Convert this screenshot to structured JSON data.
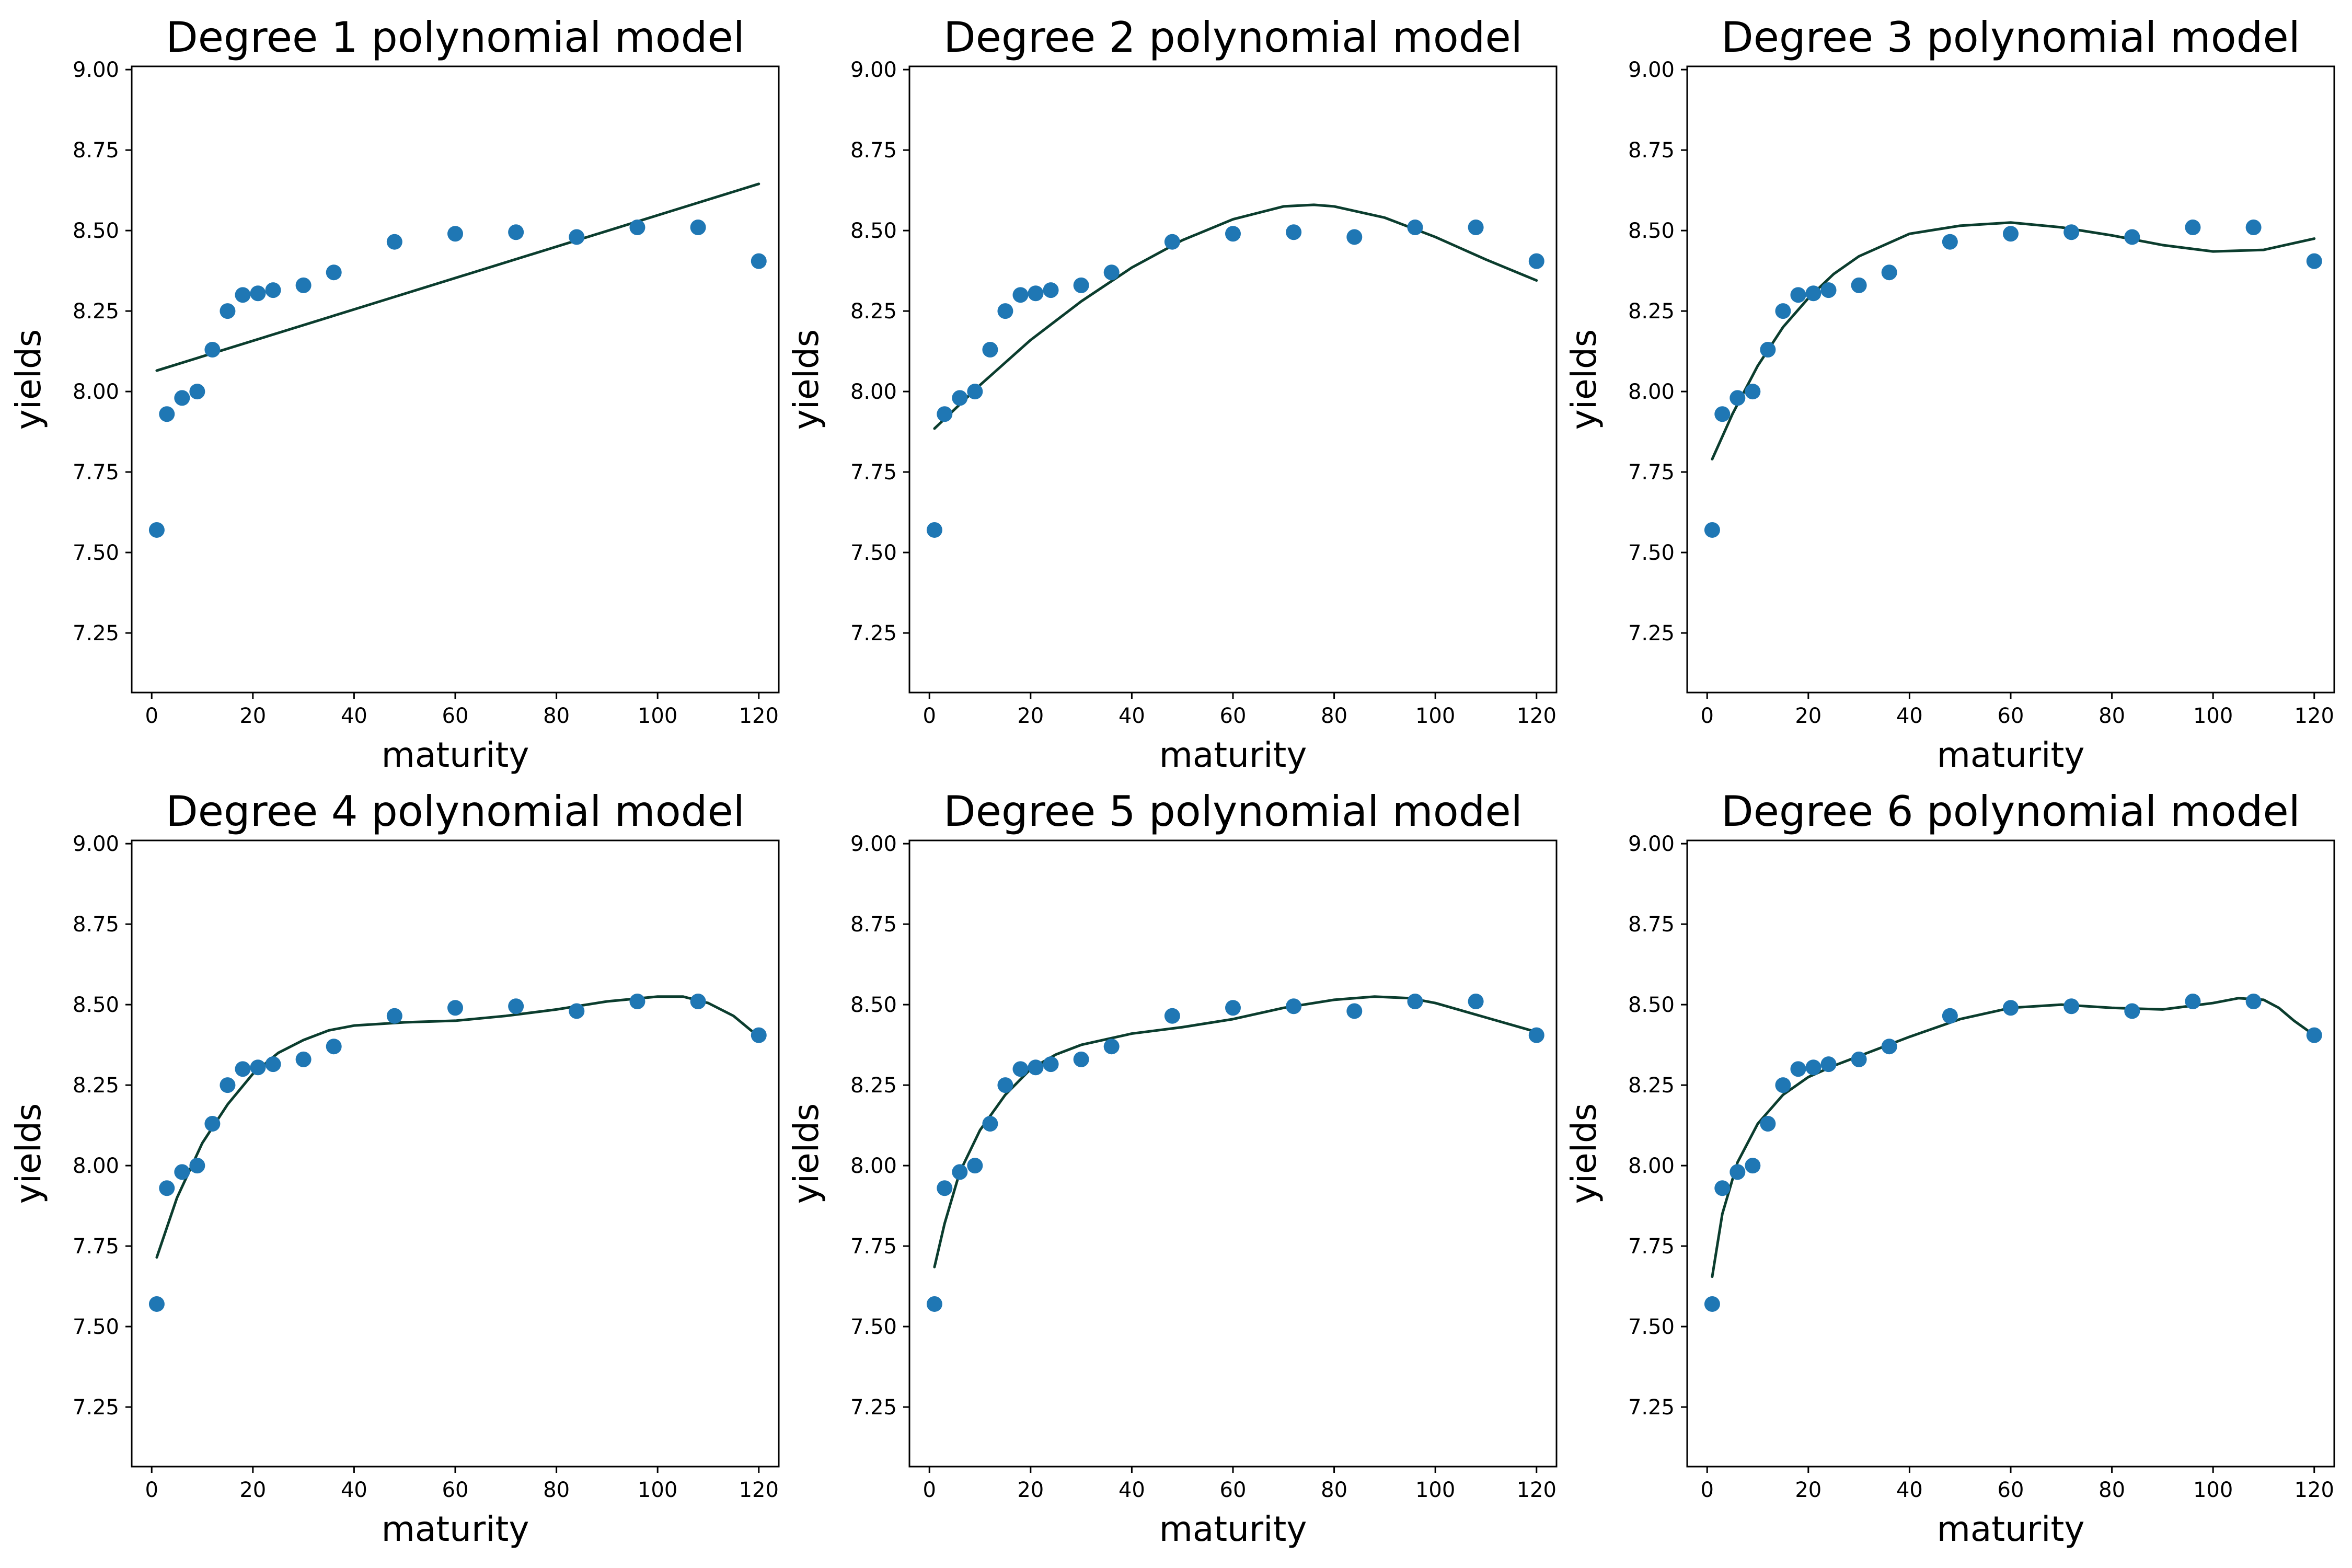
{
  "colors": {
    "points": "#1f77b4",
    "fit_line": "#0b3d2e",
    "axes": "#000000",
    "background": "#ffffff"
  },
  "layout": {
    "rows": 2,
    "cols": 3
  },
  "chart_data": [
    {
      "type": "scatter",
      "title": "Degree 1 polynomial model",
      "xlabel": "maturity",
      "ylabel": "yields",
      "xlim": [
        -3.95,
        123.95
      ],
      "ylim": [
        7.065,
        9.01
      ],
      "xticks": [
        0,
        20,
        40,
        60,
        80,
        100,
        120
      ],
      "yticks": [
        7.25,
        7.5,
        7.75,
        8.0,
        8.25,
        8.5,
        8.75,
        9.0
      ],
      "ytick_labels": [
        "7.25",
        "7.50",
        "7.75",
        "8.00",
        "8.25",
        "8.50",
        "8.75",
        "9.00"
      ],
      "grid": false,
      "series": [
        {
          "type": "scatter",
          "x": [
            1,
            3,
            6,
            9,
            12,
            15,
            18,
            21,
            24,
            30,
            36,
            48,
            60,
            72,
            84,
            96,
            108,
            120
          ],
          "y": [
            7.57,
            7.93,
            7.98,
            8.0,
            8.13,
            8.25,
            8.3,
            8.305,
            8.315,
            8.33,
            8.37,
            8.465,
            8.49,
            8.495,
            8.48,
            8.51,
            8.51,
            8.405
          ]
        },
        {
          "type": "line",
          "x": [
            1,
            120
          ],
          "y": [
            8.065,
            8.645
          ]
        }
      ]
    },
    {
      "type": "scatter",
      "title": "Degree 2 polynomial model",
      "xlabel": "maturity",
      "ylabel": "yields",
      "xlim": [
        -3.95,
        123.95
      ],
      "ylim": [
        7.065,
        9.01
      ],
      "xticks": [
        0,
        20,
        40,
        60,
        80,
        100,
        120
      ],
      "yticks": [
        7.25,
        7.5,
        7.75,
        8.0,
        8.25,
        8.5,
        8.75,
        9.0
      ],
      "ytick_labels": [
        "7.25",
        "7.50",
        "7.75",
        "8.00",
        "8.25",
        "8.50",
        "8.75",
        "9.00"
      ],
      "grid": false,
      "series": [
        {
          "type": "scatter",
          "x": [
            1,
            3,
            6,
            9,
            12,
            15,
            18,
            21,
            24,
            30,
            36,
            48,
            60,
            72,
            84,
            96,
            108,
            120
          ],
          "y": [
            7.57,
            7.93,
            7.98,
            8.0,
            8.13,
            8.25,
            8.3,
            8.305,
            8.315,
            8.33,
            8.37,
            8.465,
            8.49,
            8.495,
            8.48,
            8.51,
            8.51,
            8.405
          ]
        },
        {
          "type": "line",
          "x": [
            1,
            10,
            20,
            30,
            40,
            50,
            60,
            70,
            76,
            80,
            90,
            100,
            110,
            120
          ],
          "y": [
            7.885,
            8.02,
            8.16,
            8.28,
            8.385,
            8.47,
            8.535,
            8.575,
            8.58,
            8.575,
            8.54,
            8.48,
            8.41,
            8.345
          ]
        }
      ]
    },
    {
      "type": "scatter",
      "title": "Degree 3 polynomial model",
      "xlabel": "maturity",
      "ylabel": "yields",
      "xlim": [
        -3.95,
        123.95
      ],
      "ylim": [
        7.065,
        9.01
      ],
      "xticks": [
        0,
        20,
        40,
        60,
        80,
        100,
        120
      ],
      "yticks": [
        7.25,
        7.5,
        7.75,
        8.0,
        8.25,
        8.5,
        8.75,
        9.0
      ],
      "ytick_labels": [
        "7.25",
        "7.50",
        "7.75",
        "8.00",
        "8.25",
        "8.50",
        "8.75",
        "9.00"
      ],
      "grid": false,
      "series": [
        {
          "type": "scatter",
          "x": [
            1,
            3,
            6,
            9,
            12,
            15,
            18,
            21,
            24,
            30,
            36,
            48,
            60,
            72,
            84,
            96,
            108,
            120
          ],
          "y": [
            7.57,
            7.93,
            7.98,
            8.0,
            8.13,
            8.25,
            8.3,
            8.305,
            8.315,
            8.33,
            8.37,
            8.465,
            8.49,
            8.495,
            8.48,
            8.51,
            8.51,
            8.405
          ]
        },
        {
          "type": "line",
          "x": [
            1,
            5,
            10,
            15,
            20,
            25,
            30,
            40,
            50,
            60,
            70,
            80,
            90,
            100,
            110,
            120
          ],
          "y": [
            7.79,
            7.93,
            8.08,
            8.2,
            8.29,
            8.365,
            8.42,
            8.49,
            8.515,
            8.525,
            8.51,
            8.485,
            8.455,
            8.435,
            8.44,
            8.475
          ]
        }
      ]
    },
    {
      "type": "scatter",
      "title": "Degree 4 polynomial model",
      "xlabel": "maturity",
      "ylabel": "yields",
      "xlim": [
        -3.95,
        123.95
      ],
      "ylim": [
        7.065,
        9.01
      ],
      "xticks": [
        0,
        20,
        40,
        60,
        80,
        100,
        120
      ],
      "yticks": [
        7.25,
        7.5,
        7.75,
        8.0,
        8.25,
        8.5,
        8.75,
        9.0
      ],
      "ytick_labels": [
        "7.25",
        "7.50",
        "7.75",
        "8.00",
        "8.25",
        "8.50",
        "8.75",
        "9.00"
      ],
      "grid": false,
      "series": [
        {
          "type": "scatter",
          "x": [
            1,
            3,
            6,
            9,
            12,
            15,
            18,
            21,
            24,
            30,
            36,
            48,
            60,
            72,
            84,
            96,
            108,
            120
          ],
          "y": [
            7.57,
            7.93,
            7.98,
            8.0,
            8.13,
            8.25,
            8.3,
            8.305,
            8.315,
            8.33,
            8.37,
            8.465,
            8.49,
            8.495,
            8.48,
            8.51,
            8.51,
            8.405
          ]
        },
        {
          "type": "line",
          "x": [
            1,
            5,
            10,
            15,
            20,
            25,
            30,
            35,
            40,
            50,
            60,
            70,
            80,
            90,
            100,
            105,
            110,
            115,
            120
          ],
          "y": [
            7.715,
            7.9,
            8.07,
            8.19,
            8.285,
            8.35,
            8.39,
            8.42,
            8.435,
            8.445,
            8.45,
            8.465,
            8.485,
            8.51,
            8.525,
            8.525,
            8.505,
            8.465,
            8.4
          ]
        }
      ]
    },
    {
      "type": "scatter",
      "title": "Degree 5 polynomial model",
      "xlabel": "maturity",
      "ylabel": "yields",
      "xlim": [
        -3.95,
        123.95
      ],
      "ylim": [
        7.065,
        9.01
      ],
      "xticks": [
        0,
        20,
        40,
        60,
        80,
        100,
        120
      ],
      "yticks": [
        7.25,
        7.5,
        7.75,
        8.0,
        8.25,
        8.5,
        8.75,
        9.0
      ],
      "ytick_labels": [
        "7.25",
        "7.50",
        "7.75",
        "8.00",
        "8.25",
        "8.50",
        "8.75",
        "9.00"
      ],
      "grid": false,
      "series": [
        {
          "type": "scatter",
          "x": [
            1,
            3,
            6,
            9,
            12,
            15,
            18,
            21,
            24,
            30,
            36,
            48,
            60,
            72,
            84,
            96,
            108,
            120
          ],
          "y": [
            7.57,
            7.93,
            7.98,
            8.0,
            8.13,
            8.25,
            8.3,
            8.305,
            8.315,
            8.33,
            8.37,
            8.465,
            8.49,
            8.495,
            8.48,
            8.51,
            8.51,
            8.405
          ]
        },
        {
          "type": "line",
          "x": [
            1,
            3,
            6,
            10,
            15,
            20,
            25,
            30,
            40,
            50,
            60,
            70,
            80,
            88,
            95,
            100,
            110,
            120
          ],
          "y": [
            7.685,
            7.82,
            7.98,
            8.11,
            8.22,
            8.3,
            8.345,
            8.375,
            8.41,
            8.43,
            8.455,
            8.49,
            8.515,
            8.525,
            8.52,
            8.505,
            8.46,
            8.415
          ]
        }
      ]
    },
    {
      "type": "scatter",
      "title": "Degree 6 polynomial model",
      "xlabel": "maturity",
      "ylabel": "yields",
      "xlim": [
        -3.95,
        123.95
      ],
      "ylim": [
        7.065,
        9.01
      ],
      "xticks": [
        0,
        20,
        40,
        60,
        80,
        100,
        120
      ],
      "yticks": [
        7.25,
        7.5,
        7.75,
        8.0,
        8.25,
        8.5,
        8.75,
        9.0
      ],
      "ytick_labels": [
        "7.25",
        "7.50",
        "7.75",
        "8.00",
        "8.25",
        "8.50",
        "8.75",
        "9.00"
      ],
      "grid": false,
      "series": [
        {
          "type": "scatter",
          "x": [
            1,
            3,
            6,
            9,
            12,
            15,
            18,
            21,
            24,
            30,
            36,
            48,
            60,
            72,
            84,
            96,
            108,
            120
          ],
          "y": [
            7.57,
            7.93,
            7.98,
            8.0,
            8.13,
            8.25,
            8.3,
            8.305,
            8.315,
            8.33,
            8.37,
            8.465,
            8.49,
            8.495,
            8.48,
            8.51,
            8.51,
            8.405
          ]
        },
        {
          "type": "line",
          "x": [
            1,
            3,
            6,
            10,
            15,
            20,
            25,
            30,
            40,
            50,
            60,
            70,
            80,
            90,
            100,
            105,
            110,
            113,
            116,
            120
          ],
          "y": [
            7.655,
            7.85,
            8.01,
            8.13,
            8.22,
            8.275,
            8.31,
            8.34,
            8.4,
            8.455,
            8.49,
            8.5,
            8.49,
            8.485,
            8.505,
            8.52,
            8.515,
            8.49,
            8.45,
            8.405
          ]
        }
      ]
    }
  ]
}
